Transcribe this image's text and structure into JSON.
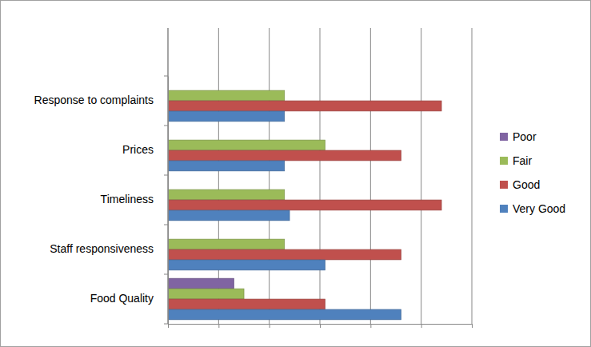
{
  "chart_data": {
    "type": "bar",
    "orientation": "horizontal",
    "categories": [
      "Food Quality",
      "Staff responsiveness",
      "Timeliness",
      "Prices",
      "Response to complaints"
    ],
    "series": [
      {
        "name": "Poor",
        "color": "#8064a2",
        "values": [
          13,
          0,
          0,
          0,
          0
        ]
      },
      {
        "name": "Fair",
        "color": "#9bbb59",
        "values": [
          15,
          23,
          23,
          31,
          23
        ]
      },
      {
        "name": "Good",
        "color": "#c0504d",
        "values": [
          31,
          46,
          54,
          46,
          54
        ]
      },
      {
        "name": "Very Good",
        "color": "#4f81bd",
        "values": [
          46,
          31,
          24,
          23,
          23
        ]
      }
    ],
    "xlim": [
      0,
      60
    ],
    "xticks": [
      0,
      10,
      20,
      30,
      40,
      50,
      60
    ],
    "grid": true,
    "legend": "right",
    "tick_labels": "y"
  }
}
